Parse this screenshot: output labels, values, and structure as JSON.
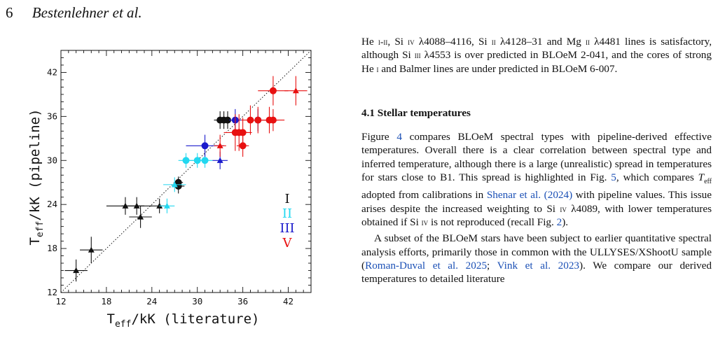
{
  "header": {
    "page_number": "6",
    "running_head": "Bestenlehner et al."
  },
  "text": {
    "intro_paragraph": [
      {
        "t": "He "
      },
      {
        "t": "i-ii",
        "c": "sc"
      },
      {
        "t": ", Si "
      },
      {
        "t": "iv",
        "c": "sc"
      },
      {
        "t": " λ4088–4116, Si "
      },
      {
        "t": "ii",
        "c": "sc"
      },
      {
        "t": " λ4128–31 and Mg "
      },
      {
        "t": "ii",
        "c": "sc"
      },
      {
        "t": " λ4481 lines is satisfactory, although Si "
      },
      {
        "t": "iii",
        "c": "sc"
      },
      {
        "t": " λ4553 is over predicted in BLOeM 2-041, and the cores of strong He "
      },
      {
        "t": "i",
        "c": "sc"
      },
      {
        "t": " and Balmer lines are under predicted in BLOeM 6-007."
      }
    ],
    "section_heading": "4.1 Stellar temperatures",
    "paragraph_2": [
      {
        "t": "Figure "
      },
      {
        "t": "4",
        "c": "link"
      },
      {
        "t": " compares BLOeM spectral types with pipeline-derived effective temperatures. Overall there is a clear correlation between spectral type and inferred temperature, although there is a large (unrealistic) spread in temperatures for stars close to B1. This spread is highlighted in Fig. "
      },
      {
        "t": "5",
        "c": "link"
      },
      {
        "t": ", which compares "
      },
      {
        "t": "T",
        "c": "it"
      },
      {
        "t": "eff",
        "c": "sub"
      },
      {
        "t": " adopted from calibrations in "
      },
      {
        "t": "Shenar et al. (2024)",
        "c": "link"
      },
      {
        "t": " with pipeline values. This issue arises despite the increased weighting to Si "
      },
      {
        "t": "iv",
        "c": "sc"
      },
      {
        "t": " λ4089, with lower temperatures obtained if Si "
      },
      {
        "t": "iv",
        "c": "sc"
      },
      {
        "t": " is not reproduced (recall Fig. "
      },
      {
        "t": "2",
        "c": "link"
      },
      {
        "t": ")."
      }
    ],
    "paragraph_3": [
      {
        "t": "A subset of the BLOeM stars have been subject to earlier quantitative spectral analysis efforts, primarily those in common with the ULLYSES/XShootU sample ("
      },
      {
        "t": "Roman-Duval et al. 2025",
        "c": "link"
      },
      {
        "t": "; "
      },
      {
        "t": "Vink et al. 2023",
        "c": "link"
      },
      {
        "t": "). We compare our derived temperatures to detailed literature"
      }
    ]
  },
  "chart_data": {
    "type": "scatter",
    "xlabel": "T_eff/kK (literature)",
    "ylabel": "T_eff/kK (pipeline)",
    "xlim": [
      12,
      45
    ],
    "ylim": [
      12,
      45
    ],
    "ticks": [
      12,
      18,
      24,
      30,
      36,
      42
    ],
    "diagonal": "one-to-one dotted line",
    "legend": {
      "placement": "right",
      "entries": [
        {
          "label": "I",
          "color": "#111111"
        },
        {
          "label": "II",
          "color": "#22d8f0"
        },
        {
          "label": "III",
          "color": "#1a1acc"
        },
        {
          "label": "V",
          "color": "#e81010"
        }
      ]
    },
    "series": [
      {
        "class": "I",
        "color": "#111111",
        "points": [
          {
            "x": 14.0,
            "y": 15.0,
            "xerr": 1.5,
            "yerr": 1.5,
            "marker": "triangle"
          },
          {
            "x": 16.0,
            "y": 17.8,
            "xerr": 1.5,
            "yerr": 1.8,
            "marker": "triangle"
          },
          {
            "x": 20.5,
            "y": 23.8,
            "xerr": 2.5,
            "yerr": 1.2,
            "marker": "triangle"
          },
          {
            "x": 22.0,
            "y": 23.8,
            "xerr": 2.0,
            "yerr": 1.2,
            "marker": "triangle"
          },
          {
            "x": 22.5,
            "y": 22.3,
            "xerr": 1.5,
            "yerr": 1.5,
            "marker": "triangle"
          },
          {
            "x": 25.0,
            "y": 23.8,
            "xerr": 1.2,
            "yerr": 1.0,
            "marker": "triangle"
          },
          {
            "x": 27.5,
            "y": 26.5,
            "xerr": 0.8,
            "yerr": 1.0,
            "marker": "circle"
          },
          {
            "x": 27.5,
            "y": 27.0,
            "xerr": 0.6,
            "yerr": 0.8,
            "marker": "circle"
          },
          {
            "x": 33.0,
            "y": 35.5,
            "xerr": 0.8,
            "yerr": 1.2,
            "marker": "circle"
          },
          {
            "x": 33.5,
            "y": 35.5,
            "xerr": 0.8,
            "yerr": 1.2,
            "marker": "circle"
          },
          {
            "x": 34.0,
            "y": 35.5,
            "xerr": 0.8,
            "yerr": 1.2,
            "marker": "circle"
          }
        ]
      },
      {
        "class": "II",
        "color": "#22d8f0",
        "points": [
          {
            "x": 26.0,
            "y": 23.8,
            "xerr": 1.0,
            "yerr": 1.0,
            "marker": "triangle"
          },
          {
            "x": 27.0,
            "y": 26.7,
            "xerr": 1.5,
            "yerr": 1.0,
            "marker": "triangle"
          },
          {
            "x": 28.5,
            "y": 30.0,
            "xerr": 1.0,
            "yerr": 1.0,
            "marker": "circle"
          },
          {
            "x": 30.0,
            "y": 30.0,
            "xerr": 1.2,
            "yerr": 1.0,
            "marker": "circle"
          },
          {
            "x": 31.0,
            "y": 30.0,
            "xerr": 1.0,
            "yerr": 1.0,
            "marker": "circle"
          }
        ]
      },
      {
        "class": "III",
        "color": "#1a1acc",
        "points": [
          {
            "x": 31.0,
            "y": 32.0,
            "xerr": 2.5,
            "yerr": 1.5,
            "marker": "circle"
          },
          {
            "x": 33.0,
            "y": 30.0,
            "xerr": 1.0,
            "yerr": 1.2,
            "marker": "triangle"
          },
          {
            "x": 35.0,
            "y": 35.5,
            "xerr": 0.8,
            "yerr": 1.5,
            "marker": "circle"
          },
          {
            "x": 38.0,
            "y": 35.5,
            "xerr": 1.2,
            "yerr": 1.5,
            "marker": "circle"
          }
        ]
      },
      {
        "class": "V",
        "color": "#e81010",
        "points": [
          {
            "x": 33.0,
            "y": 32.0,
            "xerr": 0.8,
            "yerr": 1.5,
            "marker": "triangle"
          },
          {
            "x": 35.0,
            "y": 33.8,
            "xerr": 1.5,
            "yerr": 2.5,
            "marker": "circle"
          },
          {
            "x": 35.5,
            "y": 33.8,
            "xerr": 1.2,
            "yerr": 2.5,
            "marker": "circle"
          },
          {
            "x": 36.0,
            "y": 33.8,
            "xerr": 1.2,
            "yerr": 2.0,
            "marker": "circle"
          },
          {
            "x": 36.0,
            "y": 32.0,
            "xerr": 0.8,
            "yerr": 1.5,
            "marker": "circle"
          },
          {
            "x": 37.0,
            "y": 35.5,
            "xerr": 1.2,
            "yerr": 2.0,
            "marker": "circle"
          },
          {
            "x": 38.0,
            "y": 35.5,
            "xerr": 1.0,
            "yerr": 1.8,
            "marker": "circle"
          },
          {
            "x": 39.5,
            "y": 35.5,
            "xerr": 1.2,
            "yerr": 1.8,
            "marker": "circle"
          },
          {
            "x": 40.0,
            "y": 39.5,
            "xerr": 2.0,
            "yerr": 2.0,
            "marker": "circle"
          },
          {
            "x": 40.0,
            "y": 35.5,
            "xerr": 1.5,
            "yerr": 1.5,
            "marker": "circle"
          },
          {
            "x": 43.0,
            "y": 39.5,
            "xerr": 1.5,
            "yerr": 2.0,
            "marker": "triangle"
          }
        ]
      }
    ]
  }
}
